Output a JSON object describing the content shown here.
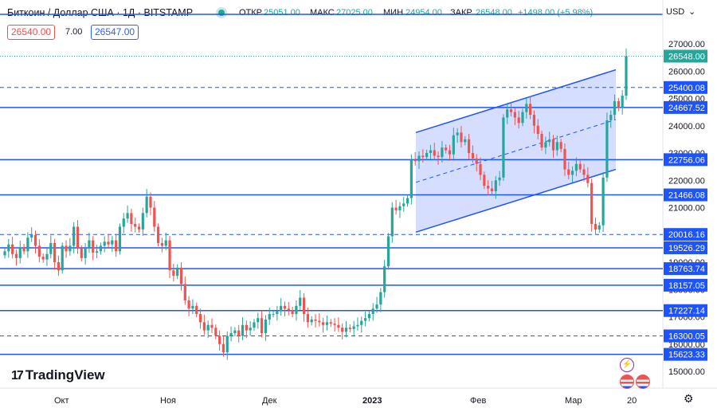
{
  "header": {
    "symbol": "Биткоин / Доллар США · 1Д · BITSTAMP",
    "open_label": "ОТКР",
    "open_value": "25051.00",
    "high_label": "МАКС",
    "high_value": "27025.00",
    "low_label": "МИН",
    "low_value": "24954.00",
    "close_label": "ЗАКР",
    "close_value": "26548.00",
    "change": "+1498.00 (+5.98%)",
    "sell_price": "26540.00",
    "spread": "7.00",
    "buy_price": "26547.00",
    "currency": "USD"
  },
  "logo": "TradingView",
  "icons": [
    "status-dot-icon",
    "chevron-down-icon",
    "lightning-icon",
    "us-flag-icon",
    "settings-gear-icon",
    "tradingview-logo-icon"
  ],
  "colors": {
    "up": "#26a69a",
    "down": "#ef5350",
    "level_line": "#1e54ff",
    "channel_fill": "#b3c3ff"
  },
  "chart_data": {
    "type": "candlestick",
    "title": "Биткоин / Доллар США · 1Д · BITSTAMP",
    "y_axis": {
      "range": [
        15000,
        27600
      ],
      "tick_labels": [
        "15000.00",
        "16000.00",
        "17000.00",
        "18000.00",
        "19000.00",
        "20000.00",
        "21000.00",
        "22000.00",
        "23000.00",
        "24000.00",
        "25000.00",
        "26000.00",
        "27000.00"
      ]
    },
    "x_axis": {
      "tick_labels": [
        "Окт",
        "Ноя",
        "Дек",
        "2023",
        "Фев",
        "Мар",
        "20"
      ]
    },
    "last_price": "26548.00",
    "horizontal_levels": [
      {
        "label": "25400.08",
        "value": 25400.08,
        "style": "dashed"
      },
      {
        "label": "24667.52",
        "value": 24667.52,
        "style": "solid"
      },
      {
        "label": "22756.06",
        "value": 22756.06,
        "style": "solid"
      },
      {
        "label": "21466.08",
        "value": 21466.08,
        "style": "solid"
      },
      {
        "label": "20016.16",
        "value": 20016.16,
        "style": "dashed"
      },
      {
        "label": "19526.29",
        "value": 19526.29,
        "style": "solid"
      },
      {
        "label": "18763.74",
        "value": 18763.74,
        "style": "solid"
      },
      {
        "label": "18157.05",
        "value": 18157.05,
        "style": "solid"
      },
      {
        "label": "17227.14",
        "value": 17227.14,
        "style": "solid"
      },
      {
        "label": "16300.05",
        "value": 16300.05,
        "style": "dashed"
      },
      {
        "label": "15623.33",
        "value": 15623.33,
        "style": "solid"
      }
    ],
    "close_series": [
      19400,
      19650,
      19300,
      19150,
      19550,
      19400,
      19900,
      20000,
      19600,
      19200,
      19100,
      19300,
      19700,
      19000,
      18700,
      19600,
      19400,
      19600,
      20300,
      19500,
      19150,
      19500,
      19800,
      19350,
      19400,
      19600,
      19750,
      19650,
      19800,
      19400,
      20300,
      20600,
      20800,
      20400,
      20300,
      20200,
      20800,
      21400,
      21000,
      20300,
      19700,
      19600,
      19800,
      18700,
      18500,
      18800,
      18200,
      17600,
      17300,
      17400,
      17100,
      16800,
      16500,
      16700,
      16600,
      16300,
      16000,
      15700,
      16300,
      16400,
      16500,
      16300,
      16700,
      16500,
      16600,
      16800,
      16950,
      16400,
      16900,
      17100,
      17100,
      17200,
      17400,
      17300,
      17250,
      17100,
      17400,
      17700,
      17100,
      16800,
      16900,
      16850,
      16800,
      16700,
      16800,
      16750,
      16700,
      16600,
      16450,
      16600,
      16550,
      16650,
      16700,
      16850,
      16950,
      17100,
      17300,
      17450,
      17900,
      18850,
      19950,
      21000,
      20900,
      21050,
      21150,
      21350,
      22750,
      22700,
      22900,
      22850,
      23000,
      23100,
      22900,
      22850,
      23200,
      23100,
      22950,
      23650,
      23750,
      23400,
      23500,
      23000,
      22800,
      22600,
      22200,
      21800,
      21700,
      21600,
      22000,
      22100,
      24300,
      24600,
      24500,
      24300,
      24100,
      24500,
      24800,
      24400,
      24000,
      23700,
      23200,
      23400,
      23500,
      23100,
      23400,
      23150,
      22400,
      22200,
      22350,
      22600,
      22400,
      22200,
      21900,
      20400,
      20200,
      20350,
      22100,
      24200,
      24400,
      24900,
      24650,
      25100,
      26548
    ]
  }
}
